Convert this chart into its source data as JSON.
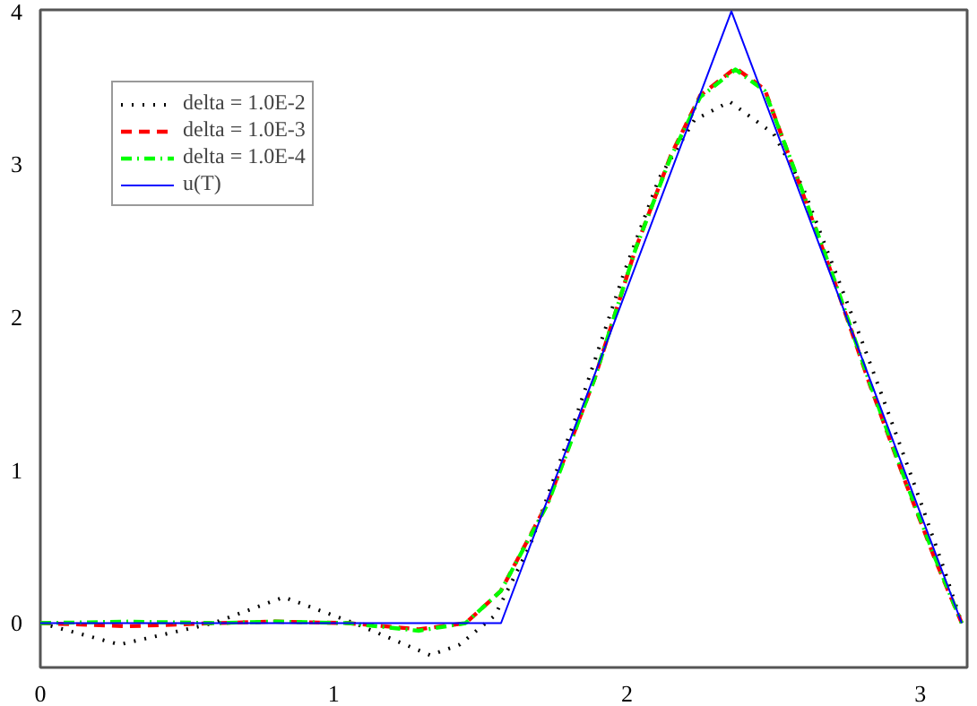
{
  "chart_data": {
    "type": "line",
    "xlim": [
      0,
      3.16
    ],
    "ylim": [
      -0.29,
      4.01
    ],
    "xticks": [
      0,
      1,
      2,
      3
    ],
    "yticks": [
      0,
      1,
      2,
      3,
      4
    ],
    "grid": false,
    "legend": "top left",
    "series": [
      {
        "name": "delta = 1.0E-2",
        "color": "#000000",
        "line_style": "dotted",
        "x": [
          0,
          0.27,
          0.59,
          0.83,
          1.07,
          1.33,
          1.43,
          1.55,
          1.67,
          1.83,
          1.99,
          2.11,
          2.23,
          2.35,
          2.5,
          2.6,
          2.7,
          2.8,
          2.9,
          3.0,
          3.08,
          3.1416
        ],
        "values": [
          0,
          -0.14,
          0,
          0.17,
          0,
          -0.21,
          -0.14,
          0.05,
          0.51,
          1.37,
          2.29,
          2.91,
          3.29,
          3.41,
          3.2,
          2.85,
          2.35,
          1.85,
          1.33,
          0.8,
          0.36,
          0
        ]
      },
      {
        "name": "delta = 1.0E-3",
        "color": "#ff0000",
        "line_style": "dashed",
        "x": [
          0,
          0.3,
          0.6,
          0.8,
          1.05,
          1.29,
          1.45,
          1.57,
          1.73,
          1.89,
          2.03,
          2.15,
          2.25,
          2.37,
          2.47,
          2.59,
          2.71,
          2.83,
          2.95,
          3.05,
          3.1416
        ],
        "values": [
          0,
          -0.02,
          0,
          0.01,
          0,
          -0.04,
          0,
          0.21,
          0.79,
          1.6,
          2.45,
          3.06,
          3.45,
          3.63,
          3.49,
          2.86,
          2.22,
          1.55,
          0.92,
          0.42,
          0
        ]
      },
      {
        "name": "delta = 1.0E-4",
        "color": "#00ff00",
        "line_style": "dashdot",
        "x": [
          0,
          0.3,
          0.6,
          0.8,
          1.05,
          1.29,
          1.45,
          1.57,
          1.73,
          1.89,
          2.03,
          2.15,
          2.25,
          2.37,
          2.47,
          2.59,
          2.71,
          2.83,
          2.95,
          3.05,
          3.1416
        ],
        "values": [
          0,
          0.01,
          0,
          0.01,
          0,
          -0.05,
          0,
          0.21,
          0.78,
          1.6,
          2.45,
          3.05,
          3.44,
          3.62,
          3.48,
          2.87,
          2.23,
          1.56,
          0.93,
          0.43,
          0
        ]
      },
      {
        "name": "u(T)",
        "color": "#0000ff",
        "line_style": "solid",
        "x": [
          0,
          1.5708,
          2.3562,
          3.1416
        ],
        "values": [
          0,
          0,
          4,
          0
        ]
      }
    ]
  }
}
